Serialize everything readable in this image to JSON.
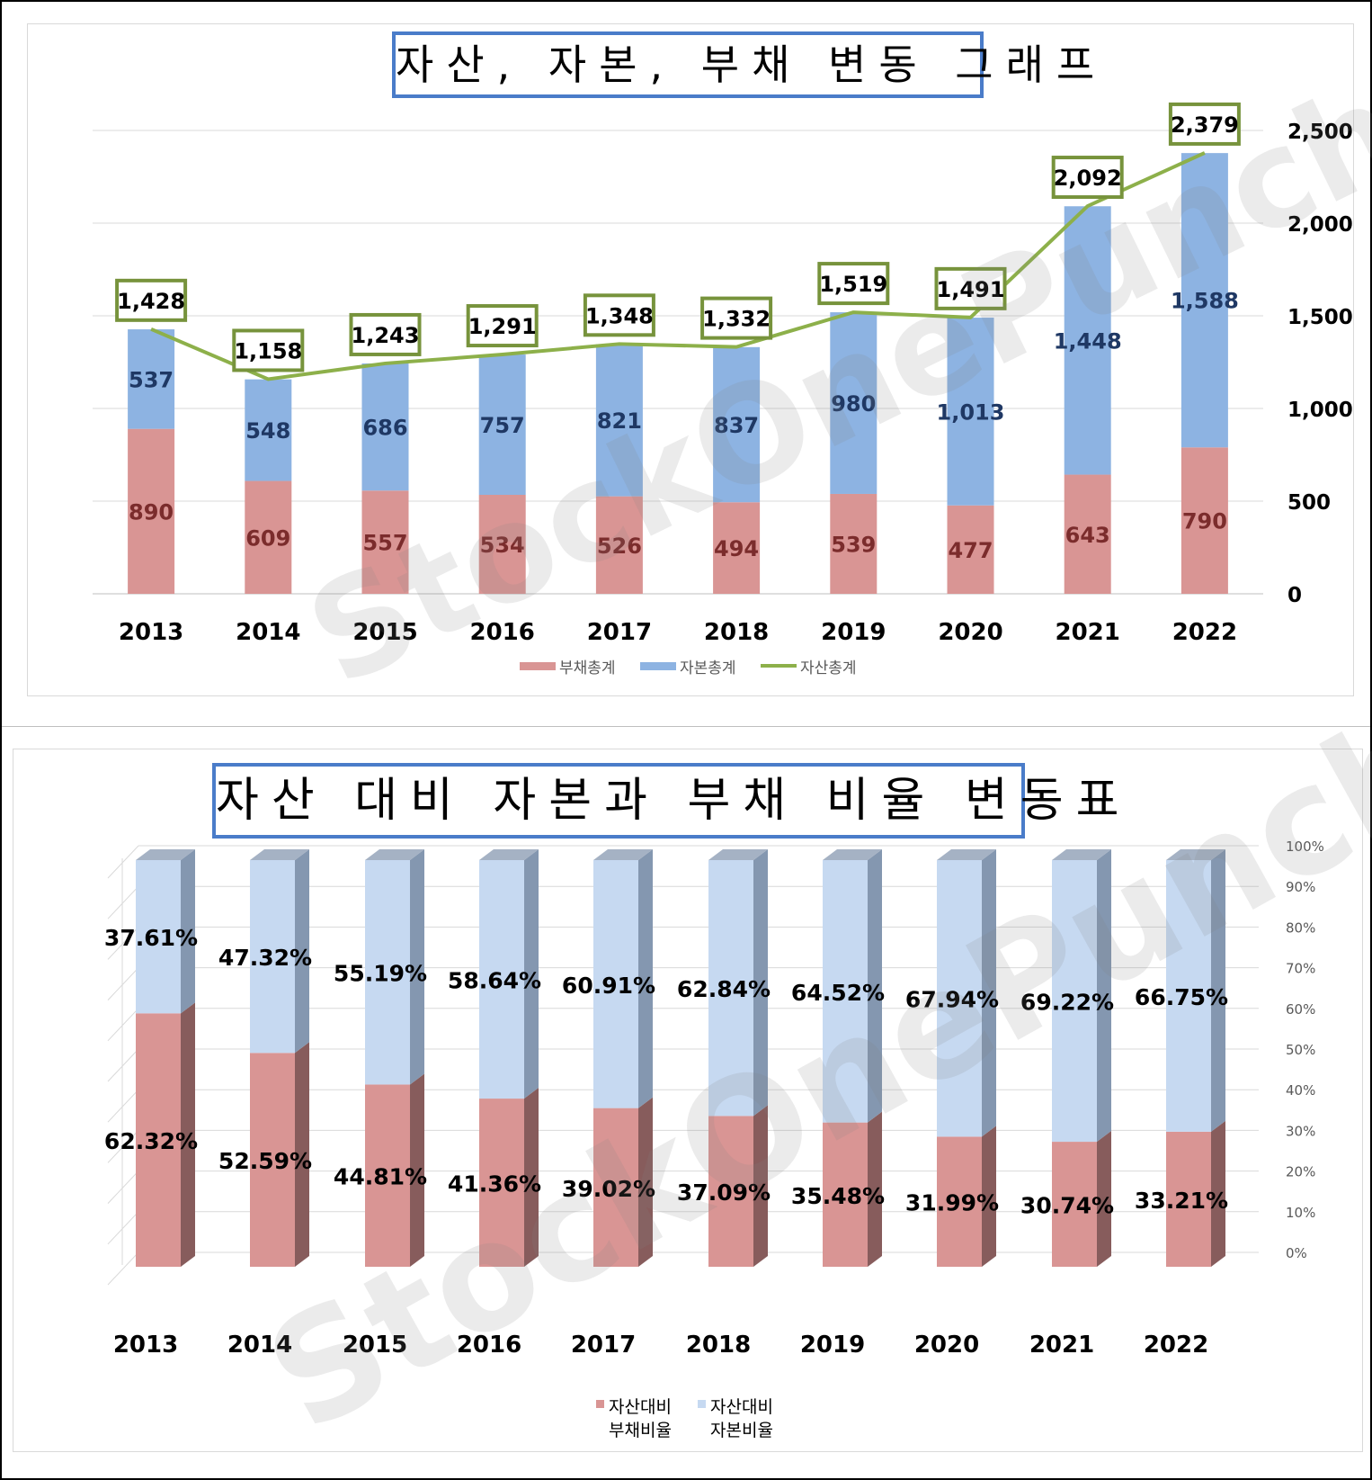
{
  "chart_data": [
    {
      "type": "bar",
      "stacked": true,
      "title": "자산, 자본, 부채 변동 그래프",
      "categories": [
        "2013",
        "2014",
        "2015",
        "2016",
        "2017",
        "2018",
        "2019",
        "2020",
        "2021",
        "2022"
      ],
      "series": [
        {
          "name": "부채총계",
          "kind": "bar",
          "color": "#d99594",
          "values": [
            890,
            609,
            557,
            534,
            526,
            494,
            539,
            477,
            643,
            790
          ],
          "labels": [
            "890",
            "609",
            "557",
            "534",
            "526",
            "494",
            "539",
            "477",
            "643",
            "790"
          ]
        },
        {
          "name": "자본총계",
          "kind": "bar",
          "color": "#8db3e2",
          "values": [
            537,
            548,
            686,
            757,
            821,
            837,
            980,
            1013,
            1448,
            1588
          ],
          "labels": [
            "537",
            "548",
            "686",
            "757",
            "821",
            "837",
            "980",
            "1,013",
            "1,448",
            "1,588"
          ]
        },
        {
          "name": "자산총계",
          "kind": "line",
          "color": "#8db04a",
          "values": [
            1428,
            1158,
            1243,
            1291,
            1348,
            1332,
            1519,
            1491,
            2092,
            2379
          ],
          "labels": [
            "1,428",
            "1,158",
            "1,243",
            "1,291",
            "1,348",
            "1,332",
            "1,519",
            "1,491",
            "2,092",
            "2,379"
          ]
        }
      ],
      "yaxis": {
        "position": "right",
        "ylim": [
          0,
          2500
        ],
        "ticks": [
          0,
          500,
          1000,
          1500,
          2000,
          2500
        ],
        "tick_labels": [
          "0",
          "500",
          "1,000",
          "1,500",
          "2,000",
          "2,500"
        ]
      },
      "grid": true,
      "legend": "bottom"
    },
    {
      "type": "bar",
      "stacked": true,
      "percent": true,
      "style": "3d",
      "title": "자산 대비 자본과 부채 비율 변동표",
      "categories": [
        "2013",
        "2014",
        "2015",
        "2016",
        "2017",
        "2018",
        "2019",
        "2020",
        "2021",
        "2022"
      ],
      "series": [
        {
          "name": "자산대비 부채비율",
          "legend_lines": [
            "자산대비",
            "부채비율"
          ],
          "color": "#d99594",
          "values": [
            62.32,
            52.59,
            44.81,
            41.36,
            39.02,
            37.09,
            35.48,
            31.99,
            30.74,
            33.21
          ],
          "labels": [
            "62.32%",
            "52.59%",
            "44.81%",
            "41.36%",
            "39.02%",
            "37.09%",
            "35.48%",
            "31.99%",
            "30.74%",
            "33.21%"
          ]
        },
        {
          "name": "자산대비 자본비율",
          "legend_lines": [
            "자산대비",
            "자본비율"
          ],
          "color": "#c6d9f1",
          "values": [
            37.61,
            47.32,
            55.19,
            58.64,
            60.91,
            62.84,
            64.52,
            67.94,
            69.22,
            66.75
          ],
          "labels": [
            "37.61%",
            "47.32%",
            "55.19%",
            "58.64%",
            "60.91%",
            "62.84%",
            "64.52%",
            "67.94%",
            "69.22%",
            "66.75%"
          ]
        }
      ],
      "yaxis": {
        "position": "right",
        "ylim": [
          0,
          100
        ],
        "ticks": [
          0,
          10,
          20,
          30,
          40,
          50,
          60,
          70,
          80,
          90,
          100
        ],
        "tick_labels": [
          "0%",
          "10%",
          "20%",
          "30%",
          "40%",
          "50%",
          "60%",
          "70%",
          "80%",
          "90%",
          "100%"
        ]
      },
      "grid": true,
      "legend": "bottom"
    }
  ],
  "watermark": "StockOnePunch"
}
